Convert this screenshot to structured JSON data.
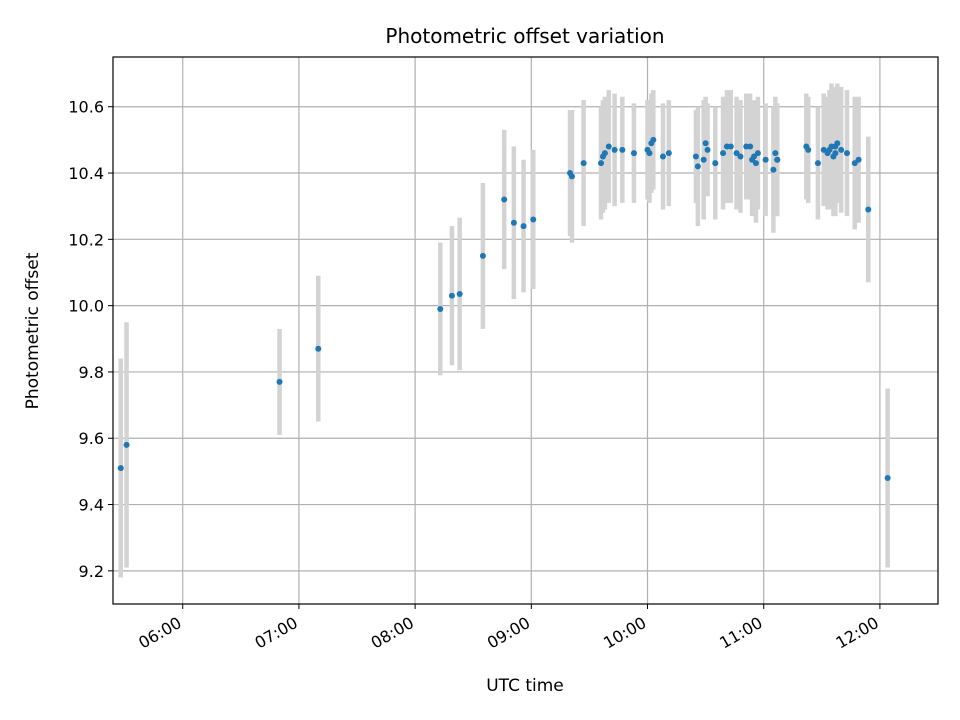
{
  "chart_data": {
    "type": "scatter",
    "title": "Photometric offset variation",
    "xlabel": "UTC time",
    "ylabel": "Photometric offset",
    "grid": true,
    "legend": "none",
    "xlim": [
      "05:24",
      "12:30"
    ],
    "ylim": [
      9.1,
      10.75
    ],
    "x_ticks": [
      "06:00",
      "07:00",
      "08:00",
      "09:00",
      "10:00",
      "11:00",
      "12:00"
    ],
    "y_ticks": [
      "9.2",
      "9.4",
      "9.6",
      "9.8",
      "10.0",
      "10.2",
      "10.4",
      "10.6"
    ],
    "colors": {
      "point": "#1f77b4",
      "errorbar": "#d3d3d3",
      "grid": "#b0b0b0"
    },
    "series": [
      {
        "x": [
          "05:28",
          "05:31",
          "06:50",
          "07:10",
          "08:13",
          "08:19",
          "08:23",
          "08:35",
          "08:46",
          "08:51",
          "08:56",
          "09:01",
          "09:20",
          "09:21",
          "09:27",
          "09:36",
          "09:37",
          "09:38",
          "09:40",
          "09:43",
          "09:47",
          "09:53",
          "10:00",
          "10:01",
          "10:02",
          "10:03",
          "10:08",
          "10:11",
          "10:25",
          "10:26",
          "10:29",
          "10:30",
          "10:31",
          "10:35",
          "10:39",
          "10:41",
          "10:43",
          "10:46",
          "10:48",
          "10:51",
          "10:53",
          "10:54",
          "10:55",
          "10:56",
          "10:57",
          "11:01",
          "11:05",
          "11:06",
          "11:07",
          "11:07",
          "11:22",
          "11:23",
          "11:28",
          "11:31",
          "11:33",
          "11:34",
          "11:35",
          "11:36",
          "11:37",
          "11:37",
          "11:38",
          "11:40",
          "11:43",
          "11:47",
          "11:49",
          "11:54",
          "12:04"
        ],
        "y": [
          9.51,
          9.58,
          9.77,
          9.87,
          9.99,
          10.03,
          10.035,
          10.15,
          10.32,
          10.25,
          10.24,
          10.26,
          10.4,
          10.39,
          10.43,
          10.43,
          10.45,
          10.46,
          10.48,
          10.47,
          10.47,
          10.46,
          10.47,
          10.46,
          10.49,
          10.5,
          10.45,
          10.46,
          10.45,
          10.42,
          10.44,
          10.49,
          10.47,
          10.43,
          10.46,
          10.48,
          10.48,
          10.46,
          10.45,
          10.48,
          10.48,
          10.44,
          10.45,
          10.43,
          10.46,
          10.44,
          10.41,
          10.46,
          10.44,
          10.44,
          10.48,
          10.47,
          10.43,
          10.47,
          10.46,
          10.47,
          10.48,
          10.45,
          10.46,
          10.48,
          10.49,
          10.47,
          10.46,
          10.43,
          10.44,
          10.29,
          9.48
        ],
        "yerr": [
          0.33,
          0.37,
          0.16,
          0.22,
          0.2,
          0.21,
          0.23,
          0.22,
          0.21,
          0.23,
          0.2,
          0.21,
          0.19,
          0.2,
          0.19,
          0.17,
          0.17,
          0.17,
          0.17,
          0.17,
          0.16,
          0.15,
          0.15,
          0.15,
          0.15,
          0.15,
          0.16,
          0.16,
          0.14,
          0.18,
          0.18,
          0.14,
          0.14,
          0.17,
          0.17,
          0.17,
          0.17,
          0.17,
          0.17,
          0.16,
          0.16,
          0.17,
          0.17,
          0.18,
          0.17,
          0.17,
          0.19,
          0.17,
          0.17,
          0.17,
          0.16,
          0.16,
          0.17,
          0.17,
          0.17,
          0.18,
          0.19,
          0.18,
          0.19,
          0.18,
          0.18,
          0.19,
          0.19,
          0.2,
          0.19,
          0.22,
          0.27
        ]
      }
    ]
  }
}
